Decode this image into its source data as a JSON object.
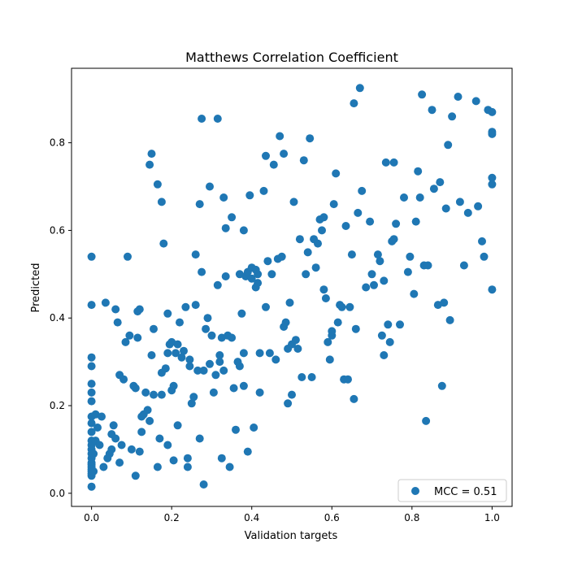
{
  "chart_data": {
    "type": "scatter",
    "title": "Matthews Correlation Coefficient",
    "xlabel": "Validation targets",
    "ylabel": "Predicted",
    "xlim": [
      -0.05,
      1.05
    ],
    "ylim": [
      -0.03,
      0.97
    ],
    "xticks": [
      0.0,
      0.2,
      0.4,
      0.6,
      0.8,
      1.0
    ],
    "xtick_labels": [
      "0.0",
      "0.2",
      "0.4",
      "0.6",
      "0.8",
      "1.0"
    ],
    "yticks": [
      0.0,
      0.2,
      0.4,
      0.6,
      0.8
    ],
    "ytick_labels": [
      "0.0",
      "0.2",
      "0.4",
      "0.6",
      "0.8"
    ],
    "grid": false,
    "legend": {
      "position": "lower-right",
      "entries": [
        "MCC = 0.51"
      ]
    },
    "color": "#1f77b4",
    "series": [
      {
        "name": "MCC = 0.51",
        "points": [
          [
            0.0,
            0.54
          ],
          [
            0.0,
            0.43
          ],
          [
            0.0,
            0.31
          ],
          [
            0.0,
            0.29
          ],
          [
            0.0,
            0.25
          ],
          [
            0.0,
            0.23
          ],
          [
            0.0,
            0.21
          ],
          [
            0.0,
            0.175
          ],
          [
            0.0,
            0.16
          ],
          [
            0.0,
            0.14
          ],
          [
            0.0,
            0.12
          ],
          [
            0.0,
            0.11
          ],
          [
            0.0,
            0.1
          ],
          [
            0.0,
            0.09
          ],
          [
            0.0,
            0.08
          ],
          [
            0.0,
            0.07
          ],
          [
            0.0,
            0.065
          ],
          [
            0.0,
            0.06
          ],
          [
            0.0,
            0.055
          ],
          [
            0.0,
            0.05
          ],
          [
            0.0,
            0.045
          ],
          [
            0.0,
            0.04
          ],
          [
            0.0,
            0.015
          ],
          [
            0.005,
            0.05
          ],
          [
            0.005,
            0.09
          ],
          [
            0.01,
            0.18
          ],
          [
            0.01,
            0.12
          ],
          [
            0.015,
            0.15
          ],
          [
            0.02,
            0.11
          ],
          [
            0.025,
            0.175
          ],
          [
            0.03,
            0.06
          ],
          [
            0.035,
            0.435
          ],
          [
            0.04,
            0.08
          ],
          [
            0.045,
            0.09
          ],
          [
            0.05,
            0.1
          ],
          [
            0.05,
            0.135
          ],
          [
            0.055,
            0.155
          ],
          [
            0.06,
            0.125
          ],
          [
            0.06,
            0.42
          ],
          [
            0.065,
            0.39
          ],
          [
            0.07,
            0.07
          ],
          [
            0.07,
            0.27
          ],
          [
            0.075,
            0.11
          ],
          [
            0.08,
            0.26
          ],
          [
            0.085,
            0.345
          ],
          [
            0.09,
            0.54
          ],
          [
            0.095,
            0.36
          ],
          [
            0.1,
            0.1
          ],
          [
            0.105,
            0.245
          ],
          [
            0.11,
            0.04
          ],
          [
            0.11,
            0.24
          ],
          [
            0.115,
            0.355
          ],
          [
            0.115,
            0.415
          ],
          [
            0.12,
            0.42
          ],
          [
            0.12,
            0.095
          ],
          [
            0.125,
            0.14
          ],
          [
            0.125,
            0.175
          ],
          [
            0.13,
            0.18
          ],
          [
            0.135,
            0.23
          ],
          [
            0.14,
            0.19
          ],
          [
            0.145,
            0.165
          ],
          [
            0.145,
            0.75
          ],
          [
            0.15,
            0.775
          ],
          [
            0.15,
            0.315
          ],
          [
            0.155,
            0.225
          ],
          [
            0.155,
            0.375
          ],
          [
            0.165,
            0.06
          ],
          [
            0.165,
            0.705
          ],
          [
            0.17,
            0.125
          ],
          [
            0.175,
            0.665
          ],
          [
            0.175,
            0.275
          ],
          [
            0.175,
            0.225
          ],
          [
            0.18,
            0.57
          ],
          [
            0.185,
            0.285
          ],
          [
            0.19,
            0.41
          ],
          [
            0.19,
            0.32
          ],
          [
            0.19,
            0.11
          ],
          [
            0.195,
            0.34
          ],
          [
            0.2,
            0.345
          ],
          [
            0.2,
            0.235
          ],
          [
            0.205,
            0.075
          ],
          [
            0.205,
            0.245
          ],
          [
            0.21,
            0.32
          ],
          [
            0.215,
            0.155
          ],
          [
            0.215,
            0.34
          ],
          [
            0.22,
            0.39
          ],
          [
            0.225,
            0.31
          ],
          [
            0.23,
            0.325
          ],
          [
            0.235,
            0.425
          ],
          [
            0.24,
            0.06
          ],
          [
            0.24,
            0.08
          ],
          [
            0.245,
            0.29
          ],
          [
            0.245,
            0.305
          ],
          [
            0.25,
            0.205
          ],
          [
            0.255,
            0.22
          ],
          [
            0.26,
            0.545
          ],
          [
            0.26,
            0.43
          ],
          [
            0.265,
            0.28
          ],
          [
            0.27,
            0.66
          ],
          [
            0.27,
            0.125
          ],
          [
            0.275,
            0.855
          ],
          [
            0.275,
            0.505
          ],
          [
            0.28,
            0.02
          ],
          [
            0.28,
            0.28
          ],
          [
            0.285,
            0.375
          ],
          [
            0.29,
            0.4
          ],
          [
            0.295,
            0.7
          ],
          [
            0.295,
            0.295
          ],
          [
            0.3,
            0.36
          ],
          [
            0.305,
            0.23
          ],
          [
            0.31,
            0.27
          ],
          [
            0.315,
            0.475
          ],
          [
            0.315,
            0.855
          ],
          [
            0.32,
            0.315
          ],
          [
            0.32,
            0.3
          ],
          [
            0.325,
            0.355
          ],
          [
            0.325,
            0.08
          ],
          [
            0.33,
            0.675
          ],
          [
            0.33,
            0.28
          ],
          [
            0.335,
            0.605
          ],
          [
            0.335,
            0.495
          ],
          [
            0.34,
            0.36
          ],
          [
            0.345,
            0.06
          ],
          [
            0.35,
            0.63
          ],
          [
            0.35,
            0.355
          ],
          [
            0.355,
            0.24
          ],
          [
            0.36,
            0.145
          ],
          [
            0.365,
            0.3
          ],
          [
            0.37,
            0.29
          ],
          [
            0.37,
            0.5
          ],
          [
            0.375,
            0.41
          ],
          [
            0.38,
            0.245
          ],
          [
            0.38,
            0.32
          ],
          [
            0.38,
            0.6
          ],
          [
            0.385,
            0.495
          ],
          [
            0.39,
            0.095
          ],
          [
            0.39,
            0.505
          ],
          [
            0.395,
            0.68
          ],
          [
            0.4,
            0.49
          ],
          [
            0.4,
            0.515
          ],
          [
            0.405,
            0.15
          ],
          [
            0.41,
            0.47
          ],
          [
            0.41,
            0.51
          ],
          [
            0.415,
            0.5
          ],
          [
            0.415,
            0.48
          ],
          [
            0.42,
            0.23
          ],
          [
            0.42,
            0.32
          ],
          [
            0.43,
            0.69
          ],
          [
            0.435,
            0.77
          ],
          [
            0.435,
            0.425
          ],
          [
            0.44,
            0.53
          ],
          [
            0.445,
            0.32
          ],
          [
            0.45,
            0.5
          ],
          [
            0.455,
            0.75
          ],
          [
            0.46,
            0.305
          ],
          [
            0.465,
            0.535
          ],
          [
            0.47,
            0.815
          ],
          [
            0.475,
            0.54
          ],
          [
            0.48,
            0.38
          ],
          [
            0.48,
            0.775
          ],
          [
            0.485,
            0.39
          ],
          [
            0.49,
            0.33
          ],
          [
            0.49,
            0.205
          ],
          [
            0.495,
            0.435
          ],
          [
            0.5,
            0.34
          ],
          [
            0.5,
            0.225
          ],
          [
            0.505,
            0.665
          ],
          [
            0.51,
            0.35
          ],
          [
            0.515,
            0.33
          ],
          [
            0.52,
            0.58
          ],
          [
            0.525,
            0.265
          ],
          [
            0.53,
            0.76
          ],
          [
            0.535,
            0.5
          ],
          [
            0.54,
            0.55
          ],
          [
            0.545,
            0.81
          ],
          [
            0.55,
            0.265
          ],
          [
            0.555,
            0.58
          ],
          [
            0.56,
            0.515
          ],
          [
            0.565,
            0.57
          ],
          [
            0.57,
            0.625
          ],
          [
            0.575,
            0.6
          ],
          [
            0.58,
            0.63
          ],
          [
            0.58,
            0.465
          ],
          [
            0.585,
            0.445
          ],
          [
            0.59,
            0.345
          ],
          [
            0.595,
            0.305
          ],
          [
            0.6,
            0.36
          ],
          [
            0.6,
            0.37
          ],
          [
            0.605,
            0.66
          ],
          [
            0.61,
            0.73
          ],
          [
            0.615,
            0.39
          ],
          [
            0.62,
            0.43
          ],
          [
            0.625,
            0.425
          ],
          [
            0.63,
            0.26
          ],
          [
            0.635,
            0.61
          ],
          [
            0.64,
            0.26
          ],
          [
            0.645,
            0.425
          ],
          [
            0.65,
            0.545
          ],
          [
            0.655,
            0.215
          ],
          [
            0.655,
            0.89
          ],
          [
            0.66,
            0.375
          ],
          [
            0.665,
            0.64
          ],
          [
            0.67,
            0.925
          ],
          [
            0.675,
            0.69
          ],
          [
            0.685,
            0.47
          ],
          [
            0.695,
            0.62
          ],
          [
            0.7,
            0.5
          ],
          [
            0.705,
            0.475
          ],
          [
            0.715,
            0.545
          ],
          [
            0.72,
            0.53
          ],
          [
            0.725,
            0.36
          ],
          [
            0.73,
            0.315
          ],
          [
            0.73,
            0.485
          ],
          [
            0.735,
            0.755
          ],
          [
            0.74,
            0.385
          ],
          [
            0.745,
            0.345
          ],
          [
            0.75,
            0.575
          ],
          [
            0.755,
            0.58
          ],
          [
            0.755,
            0.755
          ],
          [
            0.76,
            0.615
          ],
          [
            0.77,
            0.385
          ],
          [
            0.78,
            0.675
          ],
          [
            0.79,
            0.505
          ],
          [
            0.795,
            0.54
          ],
          [
            0.805,
            0.455
          ],
          [
            0.81,
            0.62
          ],
          [
            0.815,
            0.735
          ],
          [
            0.82,
            0.675
          ],
          [
            0.825,
            0.91
          ],
          [
            0.83,
            0.52
          ],
          [
            0.835,
            0.165
          ],
          [
            0.84,
            0.52
          ],
          [
            0.85,
            0.875
          ],
          [
            0.855,
            0.695
          ],
          [
            0.865,
            0.43
          ],
          [
            0.87,
            0.71
          ],
          [
            0.875,
            0.245
          ],
          [
            0.88,
            0.435
          ],
          [
            0.885,
            0.65
          ],
          [
            0.89,
            0.795
          ],
          [
            0.895,
            0.395
          ],
          [
            0.9,
            0.86
          ],
          [
            0.915,
            0.905
          ],
          [
            0.92,
            0.665
          ],
          [
            0.93,
            0.52
          ],
          [
            0.94,
            0.64
          ],
          [
            0.96,
            0.895
          ],
          [
            0.965,
            0.655
          ],
          [
            0.975,
            0.575
          ],
          [
            0.98,
            0.54
          ],
          [
            0.99,
            0.875
          ],
          [
            1.0,
            0.87
          ],
          [
            1.0,
            0.825
          ],
          [
            1.0,
            0.82
          ],
          [
            1.0,
            0.72
          ],
          [
            1.0,
            0.705
          ],
          [
            1.0,
            0.465
          ]
        ]
      }
    ]
  }
}
